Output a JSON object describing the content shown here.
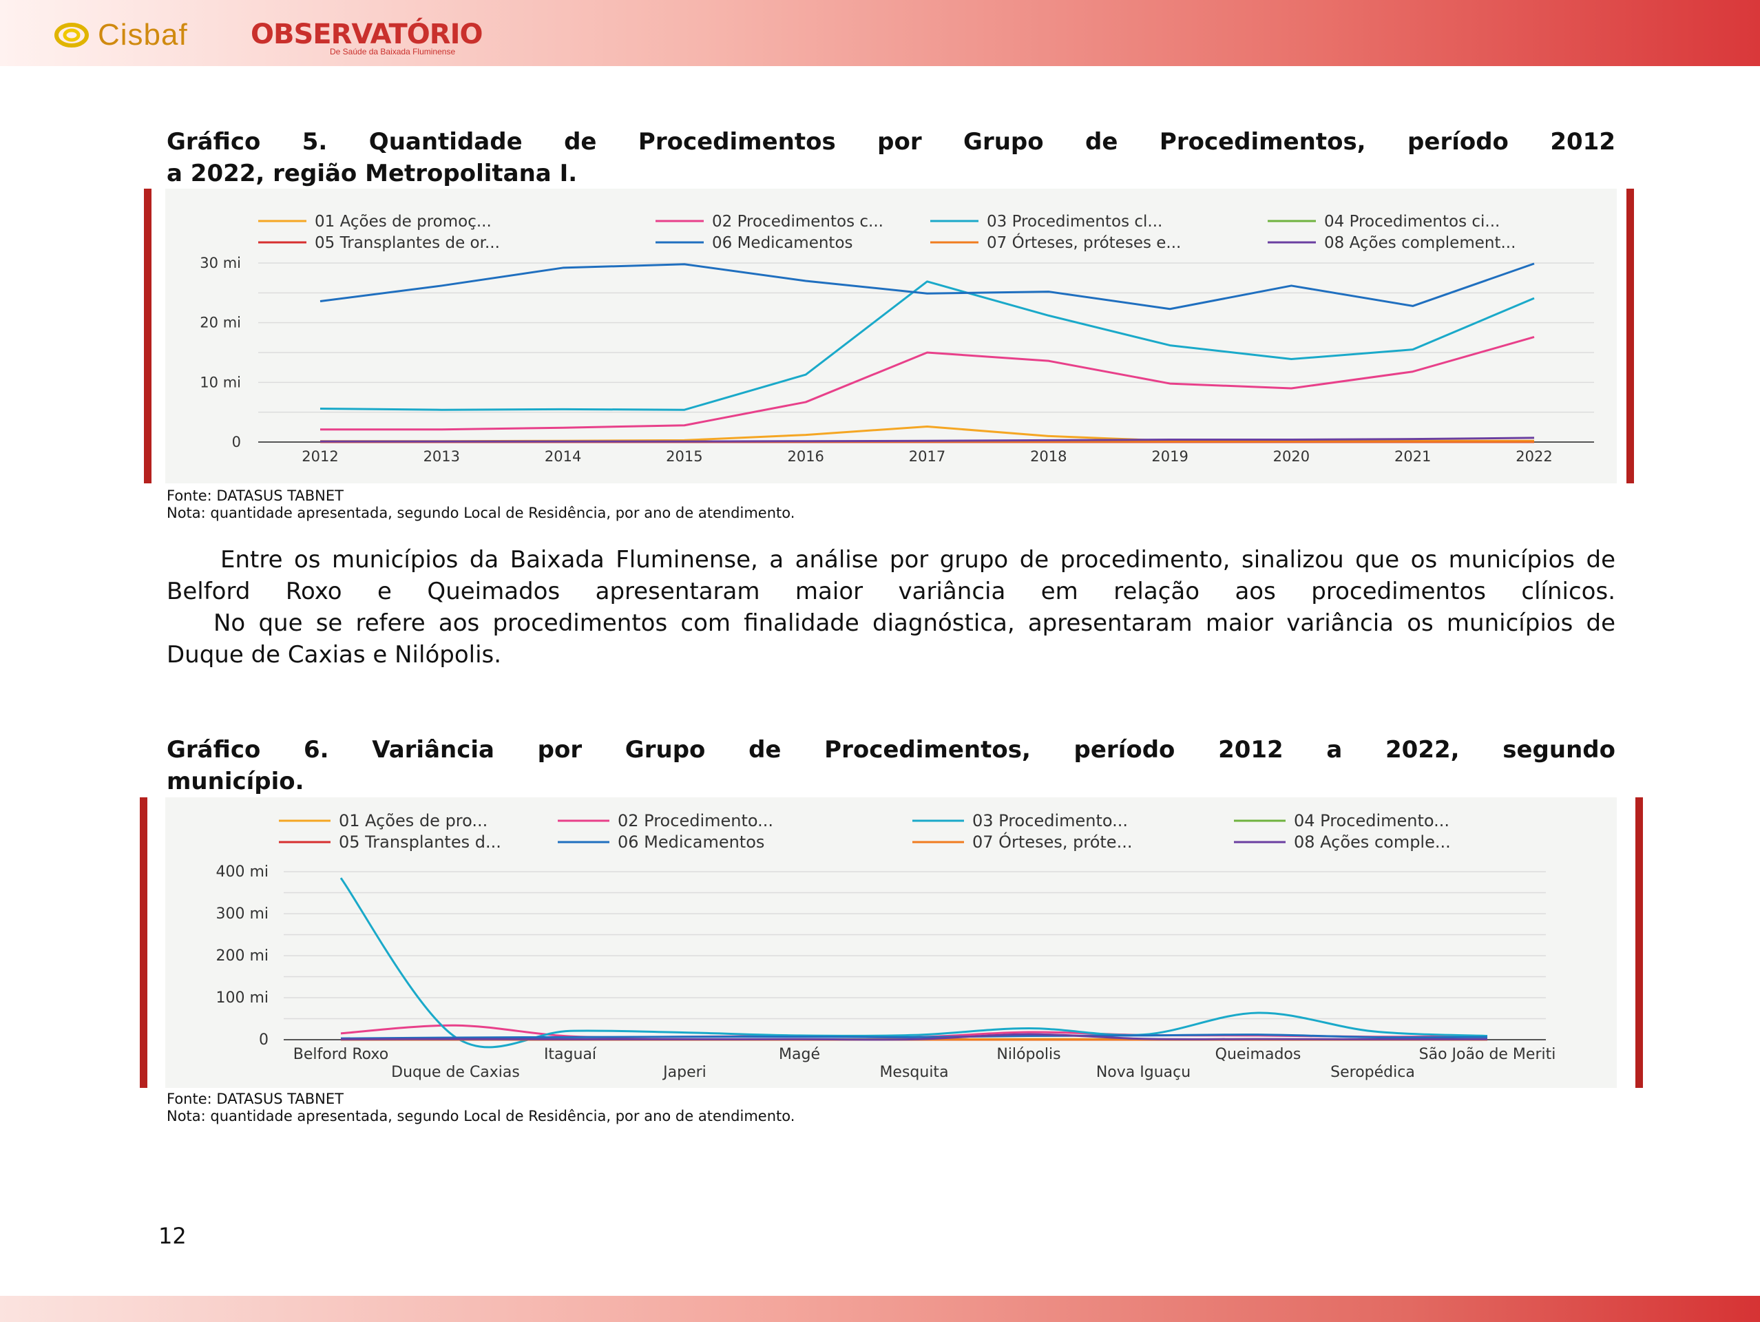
{
  "header": {
    "logo_cisbaf": "Cisbaf",
    "logo_observatorio": "OBSERVATÓRIO",
    "logo_observatorio_sub": "De Saúde da Baixada Fluminense"
  },
  "chart5": {
    "title_line1": "Gráfico 5. Quantidade de Procedimentos por Grupo de Procedimentos, período 2012",
    "title_line2": "a 2022, região Metropolitana I.",
    "source": "Fonte: DATASUS TABNET",
    "note": "Nota: quantidade apresentada, segundo Local de Residência, por ano de atendimento."
  },
  "chart6": {
    "title_line1": "Gráfico 6. Variância por Grupo de Procedimentos, período 2012 a 2022, segundo",
    "title_line2": "município.",
    "source": "Fonte: DATASUS TABNET",
    "note": "Nota: quantidade apresentada, segundo Local de Residência, por ano de atendimento."
  },
  "body": {
    "p1": "Entre os municípios da Baixada Fluminense, a análise por grupo de procedimento, sinalizou que os municípios de Belford Roxo e Queimados apresentaram maior variância em relação aos procedimentos clínicos.",
    "p2": "No que se refere aos procedimentos com finalidade diagnóstica, apresentaram maior variância os municípios de Duque de Caxias e Nilópolis."
  },
  "page_number": "12",
  "chart_data": [
    {
      "type": "line",
      "x": [
        "2012",
        "2013",
        "2014",
        "2015",
        "2016",
        "2017",
        "2018",
        "2019",
        "2020",
        "2021",
        "2022"
      ],
      "y_ticks": [
        "0",
        "10 mi",
        "20 mi",
        "30 mi"
      ],
      "ylim": [
        0,
        30000
      ],
      "grid": true,
      "legend_position": "top",
      "series": [
        {
          "name": "01 Ações de promoç...",
          "color": "#f5a623",
          "values": [
            150,
            150,
            200,
            300,
            1200,
            2600,
            1000,
            200,
            200,
            200,
            200
          ]
        },
        {
          "name": "02 Procedimentos c...",
          "color": "#e8408a",
          "values": [
            2100,
            2100,
            2400,
            2800,
            6700,
            15000,
            13600,
            9800,
            9000,
            11800,
            17600
          ]
        },
        {
          "name": "03 Procedimentos cl...",
          "color": "#1aa9c9",
          "values": [
            5600,
            5400,
            5500,
            5400,
            11300,
            26900,
            21200,
            16200,
            13900,
            15500,
            24100
          ]
        },
        {
          "name": "04 Procedimentos ci...",
          "color": "#6fb33f",
          "values": [
            50,
            50,
            50,
            50,
            50,
            50,
            50,
            50,
            50,
            50,
            50
          ]
        },
        {
          "name": "05 Transplantes de or...",
          "color": "#d62f2f",
          "values": [
            20,
            20,
            20,
            20,
            20,
            20,
            20,
            20,
            20,
            20,
            20
          ]
        },
        {
          "name": "06 Medicamentos",
          "color": "#1f6fbf",
          "values": [
            23600,
            26200,
            29200,
            29800,
            27000,
            24900,
            25200,
            22300,
            26200,
            22800,
            29900
          ]
        },
        {
          "name": "07 Órteses, próteses e...",
          "color": "#f07c1f",
          "values": [
            80,
            80,
            80,
            80,
            80,
            80,
            80,
            80,
            80,
            80,
            80
          ]
        },
        {
          "name": "08 Ações complement...",
          "color": "#6a3fa0",
          "values": [
            100,
            100,
            100,
            100,
            150,
            200,
            300,
            400,
            400,
            500,
            700
          ]
        }
      ]
    },
    {
      "type": "line",
      "x": [
        "Belford Roxo",
        "Duque de Caxias",
        "Itaguaí",
        "Japeri",
        "Magé",
        "Mesquita",
        "Nilópolis",
        "Nova Iguaçu",
        "Queimados",
        "Seropédica",
        "São João de Meriti"
      ],
      "y_ticks": [
        "0",
        "100 mi",
        "200 mi",
        "300 mi",
        "400 mi"
      ],
      "ylim": [
        0,
        400000
      ],
      "grid": true,
      "legend_position": "top",
      "series": [
        {
          "name": "01 Ações de pro...",
          "color": "#f5a623",
          "values": [
            500,
            1000,
            500,
            500,
            800,
            600,
            1500,
            800,
            1000,
            600,
            800
          ]
        },
        {
          "name": "02 Procedimento...",
          "color": "#e8408a",
          "values": [
            15000,
            34000,
            8000,
            7000,
            9000,
            6000,
            18000,
            11000,
            10000,
            7000,
            8000
          ]
        },
        {
          "name": "03 Procedimento...",
          "color": "#1aa9c9",
          "values": [
            385000,
            6000,
            21000,
            17000,
            10000,
            11000,
            27000,
            12000,
            64000,
            20000,
            9000
          ]
        },
        {
          "name": "04 Procedimento...",
          "color": "#6fb33f",
          "values": [
            200,
            200,
            200,
            200,
            200,
            200,
            200,
            200,
            200,
            200,
            200
          ]
        },
        {
          "name": "05 Transplantes d...",
          "color": "#d62f2f",
          "values": [
            100,
            100,
            100,
            100,
            100,
            100,
            100,
            100,
            100,
            100,
            100
          ]
        },
        {
          "name": "06 Medicamentos",
          "color": "#1f6fbf",
          "values": [
            3000,
            5000,
            6000,
            7000,
            7000,
            6000,
            9000,
            10000,
            12000,
            6000,
            6000
          ]
        },
        {
          "name": "07 Órteses, próte...",
          "color": "#f07c1f",
          "values": [
            300,
            300,
            300,
            300,
            300,
            300,
            300,
            300,
            300,
            300,
            300
          ]
        },
        {
          "name": "08 Ações comple...",
          "color": "#6a3fa0",
          "values": [
            1000,
            1500,
            1000,
            1000,
            1200,
            1000,
            13000,
            2000,
            1500,
            1000,
            1000
          ]
        }
      ]
    }
  ]
}
